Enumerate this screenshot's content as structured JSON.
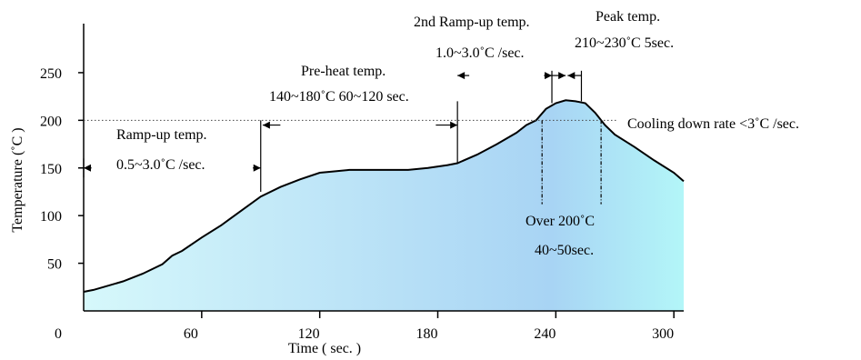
{
  "chart_data": {
    "type": "area",
    "xlabel": "Time ( sec. )",
    "ylabel": "Temperature (˚C )",
    "xlim": [
      0,
      305
    ],
    "ylim": [
      0,
      290
    ],
    "x_ticks": [
      "0",
      "60",
      "120",
      "180",
      "240",
      "300"
    ],
    "y_ticks": [
      "50",
      "100",
      "150",
      "200",
      "250"
    ],
    "reference_line_y": 200,
    "series": [
      {
        "x": [
          0,
          5,
          10,
          20,
          30,
          40,
          45,
          50,
          60,
          70,
          80,
          90,
          100,
          110,
          120,
          125,
          135,
          150,
          165,
          175,
          185,
          190,
          200,
          210,
          220,
          225,
          230,
          235,
          240,
          245,
          250,
          255,
          260,
          265,
          270,
          280,
          290,
          300,
          305
        ],
        "values": [
          20,
          22,
          25,
          31,
          39,
          49,
          58,
          63,
          77,
          90,
          105,
          120,
          130,
          138,
          145,
          146,
          148,
          148,
          148,
          150,
          153,
          155,
          164,
          175,
          187,
          195,
          200,
          212,
          218,
          221,
          220,
          218,
          208,
          195,
          185,
          172,
          158,
          145,
          136
        ]
      }
    ],
    "fill_colors": [
      "#d6f8fb",
      "#a8d4f4",
      "#b3f6f8"
    ],
    "annotations": {
      "ramp_up_title": "Ramp-up temp.",
      "ramp_up_rate": "0.5~3.0˚C /sec.",
      "preheat_title": "Pre-heat temp.",
      "preheat_detail": "140~180˚C 60~120 sec.",
      "ramp2_title": "2nd Ramp-up temp.",
      "ramp2_rate": "1.0~3.0˚C /sec.",
      "peak_title": "Peak temp.",
      "peak_detail": "210~230˚C 5sec.",
      "cooling": "Cooling down rate <3˚C /sec.",
      "over200_title": "Over 200˚C",
      "over200_detail": "40~50sec."
    }
  }
}
